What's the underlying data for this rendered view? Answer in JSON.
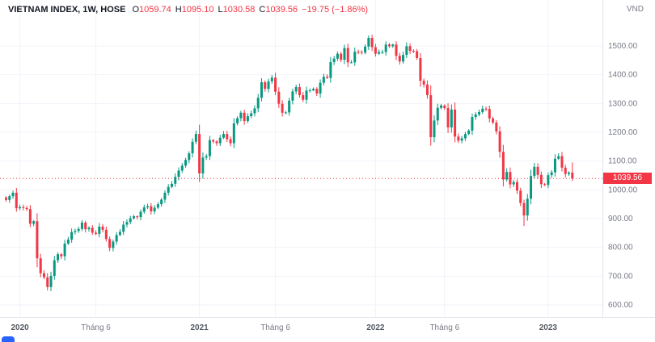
{
  "legend": {
    "symbol": "VIETNAM INDEX, 1W, HOSE",
    "o_label": "O",
    "o_value": "1059.74",
    "h_label": "H",
    "h_value": "1095.10",
    "l_label": "L",
    "l_value": "1030.58",
    "c_label": "C",
    "c_value": "1039.56",
    "change": "−19.75 (−1.86%)"
  },
  "price_label": "1039.56",
  "axis": {
    "currency": "VND",
    "price_ticks": [
      {
        "value": 1500,
        "label": "1500.00"
      },
      {
        "value": 1400,
        "label": "1400.00"
      },
      {
        "value": 1300,
        "label": "1300.00"
      },
      {
        "value": 1200,
        "label": "1200.00"
      },
      {
        "value": 1100,
        "label": "1100.00"
      },
      {
        "value": 1000,
        "label": "1000.00"
      },
      {
        "value": 900,
        "label": "900.00"
      },
      {
        "value": 800,
        "label": "800.00"
      },
      {
        "value": 700,
        "label": "700.00"
      },
      {
        "value": 600,
        "label": "600.00"
      }
    ],
    "time_ticks": [
      {
        "label": "2020",
        "index": 4,
        "type": "year"
      },
      {
        "label": "Tháng 6",
        "index": 26,
        "type": "month"
      },
      {
        "label": "2021",
        "index": 56,
        "type": "year"
      },
      {
        "label": "Tháng 6",
        "index": 78,
        "type": "month"
      },
      {
        "label": "2022",
        "index": 107,
        "type": "year"
      },
      {
        "label": "Tháng 6",
        "index": 127,
        "type": "month"
      },
      {
        "label": "2023",
        "index": 157,
        "type": "year"
      }
    ]
  },
  "chart_data": {
    "type": "candlestick",
    "title": "VIETNAM INDEX, 1W, HOSE",
    "timeframe": "1W",
    "exchange": "HOSE",
    "currency": "VND",
    "ylim": [
      600,
      1560
    ],
    "grid": true,
    "last_candle": {
      "open": 1059.74,
      "high": 1095.1,
      "low": 1030.58,
      "close": 1039.56,
      "change": -19.75,
      "change_pct": -1.86
    },
    "current_price": 1039.56,
    "colors": {
      "up": "#089981",
      "down": "#F23645",
      "grid": "#f0f3fa",
      "axis_line": "#e0e3eb",
      "price_line": "#F23645"
    },
    "closes": [
      965,
      978,
      990,
      936,
      940,
      937,
      933,
      882,
      891,
      762,
      710,
      696,
      662,
      701,
      755,
      776,
      769,
      813,
      827,
      853,
      857,
      864,
      886,
      863,
      868,
      851,
      847,
      872,
      861,
      829,
      798,
      820,
      843,
      854,
      879,
      888,
      901,
      908,
      905,
      924,
      939,
      943,
      925,
      938,
      950,
      966,
      990,
      1010,
      1021,
      1045,
      1067,
      1084,
      1104,
      1127,
      1167,
      1194,
      1057,
      1112,
      1117,
      1173,
      1168,
      1162,
      1181,
      1194,
      1176,
      1162,
      1231,
      1249,
      1268,
      1239,
      1256,
      1266,
      1283,
      1320,
      1374,
      1351,
      1377,
      1390,
      1341,
      1299,
      1268,
      1269,
      1310,
      1342,
      1357,
      1329,
      1313,
      1345,
      1346,
      1351,
      1335,
      1372,
      1393,
      1389,
      1444,
      1456,
      1473,
      1452,
      1493,
      1443,
      1443,
      1480,
      1479,
      1477,
      1498,
      1528,
      1496,
      1473,
      1479,
      1479,
      1505,
      1499,
      1505,
      1466,
      1446,
      1469,
      1499,
      1483,
      1482,
      1458,
      1379,
      1366,
      1329,
      1183,
      1241,
      1285,
      1293,
      1284,
      1217,
      1279,
      1185,
      1171,
      1179,
      1194,
      1206,
      1253,
      1262,
      1270,
      1282,
      1281,
      1248,
      1234,
      1203,
      1132,
      1036,
      1062,
      1019,
      1027,
      997,
      954,
      911,
      969,
      1048,
      1080,
      1052,
      1020,
      1017,
      1051,
      1061,
      1108,
      1117,
      1077,
      1055,
      1059.74,
      1039.56
    ],
    "wick_overrides": {
      "12": {
        "low": 650
      },
      "150": {
        "low": 874
      },
      "164": {
        "high": 1095.1,
        "low": 1030.58
      }
    }
  }
}
